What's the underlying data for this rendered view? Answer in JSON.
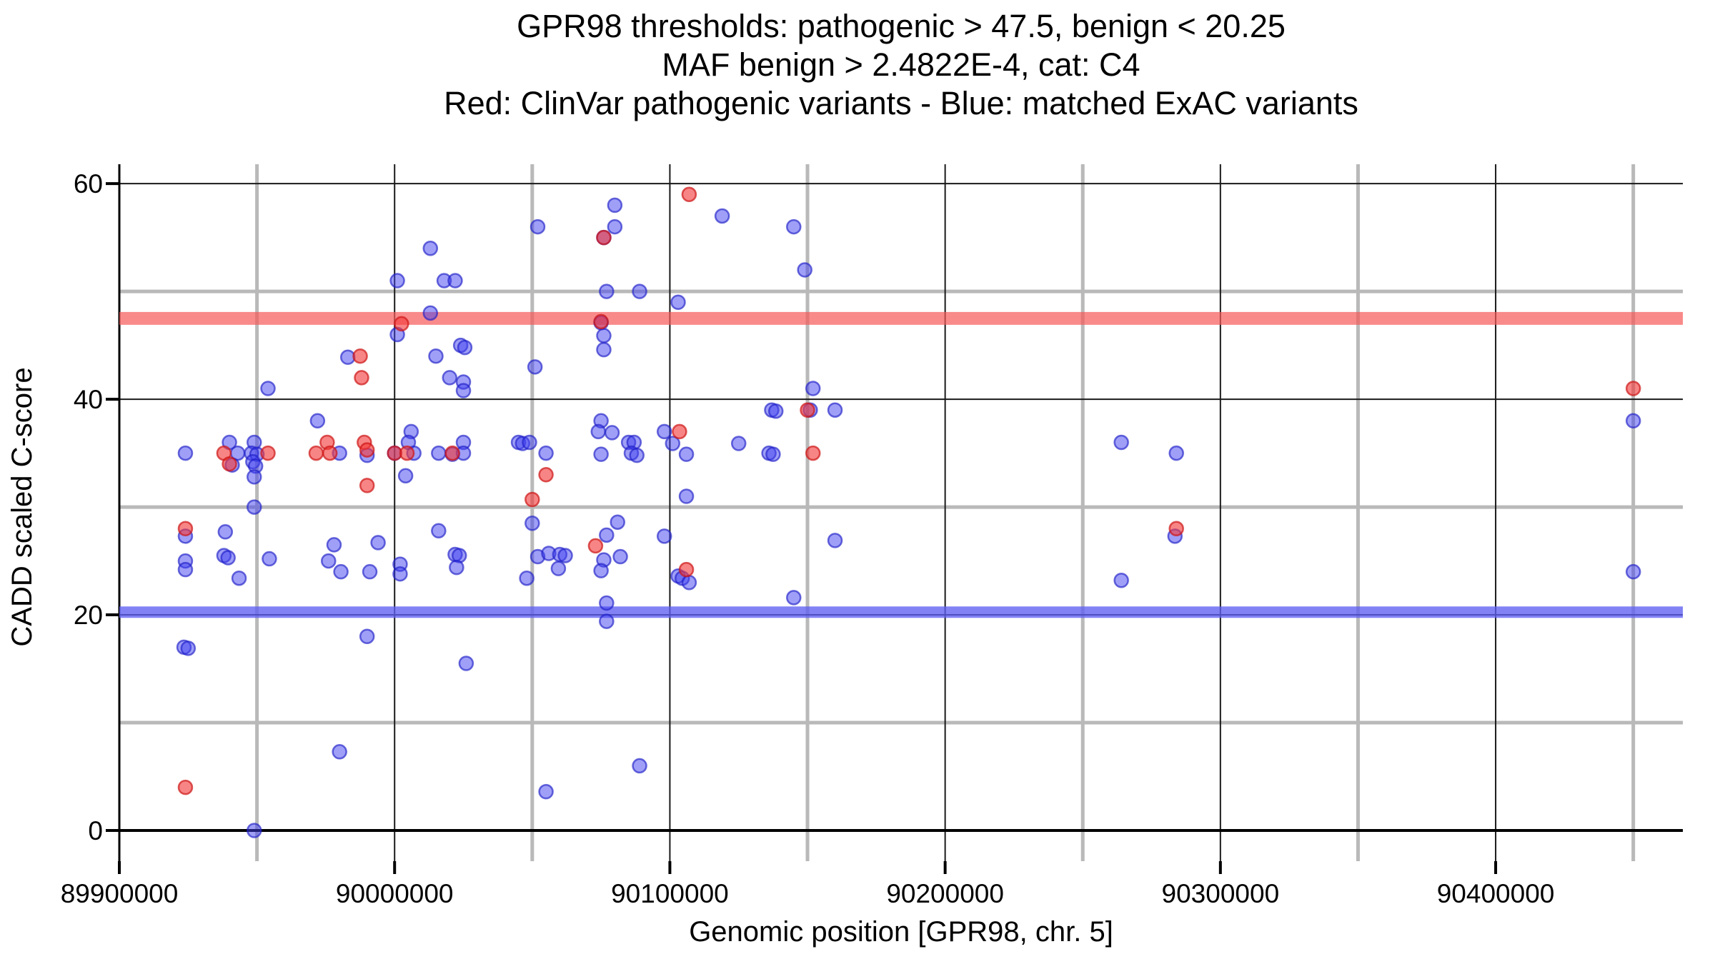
{
  "page": {
    "background": "#ffffff"
  },
  "chart_data": {
    "type": "scatter",
    "title_lines": [
      "GPR98 thresholds: pathogenic > 47.5, benign < 20.25",
      "MAF benign > 2.4822E-4, cat: C4",
      "Red: ClinVar pathogenic variants - Blue: matched ExAC variants"
    ],
    "xlabel": "Genomic position [GPR98, chr. 5]",
    "ylabel": "CADD scaled C-score",
    "xlim": [
      89900000,
      90468000
    ],
    "ylim": [
      0,
      61.8
    ],
    "x_ticks": [
      89900000,
      90000000,
      90100000,
      90200000,
      90300000,
      90400000
    ],
    "x_tick_labels": [
      "89900000",
      "90000000",
      "90100000",
      "90200000",
      "90300000",
      "90400000"
    ],
    "x_minor_ticks": [
      89950000,
      90050000,
      90150000,
      90250000,
      90350000,
      90450000
    ],
    "y_ticks": [
      0,
      20,
      40,
      60
    ],
    "y_tick_labels": [
      "0",
      "20",
      "40",
      "60"
    ],
    "y_minor_ticks": [
      10,
      30,
      50
    ],
    "grid": {
      "major_color": "#1a1a1a",
      "minor_color": "#b9b9b9",
      "axis_color": "#000000",
      "legend_position": "none",
      "grid_on": true
    },
    "thresholds": {
      "pathogenic_value": 47.5,
      "benign_value": 20.25,
      "pathogenic_band_color": "rgba(247,88,88,0.70)",
      "benign_band_color": "rgba(95,95,242,0.78)"
    },
    "series": [
      {
        "name": "matched ExAC variants",
        "fill": "rgba(64,64,240,0.50)",
        "stroke": "rgba(30,30,200,0.65)",
        "points": [
          [
            90080000,
            58
          ],
          [
            90119000,
            57
          ],
          [
            90052000,
            56
          ],
          [
            90080000,
            56
          ],
          [
            90145000,
            56
          ],
          [
            90076000,
            55
          ],
          [
            90013000,
            54
          ],
          [
            90149000,
            52
          ],
          [
            90001000,
            51
          ],
          [
            90018000,
            51
          ],
          [
            90022000,
            51
          ],
          [
            90077000,
            50
          ],
          [
            90089000,
            50
          ],
          [
            90103000,
            49
          ],
          [
            90013000,
            48
          ],
          [
            90075000,
            47.1
          ],
          [
            90001000,
            46
          ],
          [
            90076000,
            45.9
          ],
          [
            90024000,
            45
          ],
          [
            90025500,
            44.8
          ],
          [
            90076000,
            44.6
          ],
          [
            90015000,
            44
          ],
          [
            89983000,
            43.9
          ],
          [
            90051000,
            43
          ],
          [
            89954000,
            41
          ],
          [
            90152000,
            41
          ],
          [
            90020000,
            42
          ],
          [
            90025000,
            41.6
          ],
          [
            90025000,
            40.8
          ],
          [
            90137000,
            39
          ],
          [
            90138500,
            38.9
          ],
          [
            90151000,
            39
          ],
          [
            90160000,
            39
          ],
          [
            89972000,
            38
          ],
          [
            90075000,
            38
          ],
          [
            90074000,
            37
          ],
          [
            90079000,
            36.9
          ],
          [
            90006000,
            37
          ],
          [
            90098000,
            37
          ],
          [
            89940000,
            36
          ],
          [
            89949000,
            36
          ],
          [
            90005000,
            36
          ],
          [
            90025000,
            36
          ],
          [
            90045000,
            36
          ],
          [
            90046500,
            35.9
          ],
          [
            90049000,
            36
          ],
          [
            90085000,
            36
          ],
          [
            90087000,
            36
          ],
          [
            90101000,
            35.9
          ],
          [
            90125000,
            35.9
          ],
          [
            90264000,
            36
          ],
          [
            89924000,
            35
          ],
          [
            89943000,
            35
          ],
          [
            89948000,
            35
          ],
          [
            89950000,
            34.9
          ],
          [
            89980000,
            35
          ],
          [
            89990000,
            34.8
          ],
          [
            90000000,
            35
          ],
          [
            90007000,
            35
          ],
          [
            90016000,
            35
          ],
          [
            90021000,
            34.9
          ],
          [
            90025000,
            35
          ],
          [
            90055000,
            35
          ],
          [
            90075000,
            34.9
          ],
          [
            90086000,
            35
          ],
          [
            90088000,
            34.8
          ],
          [
            90106000,
            34.9
          ],
          [
            90136000,
            35
          ],
          [
            90137500,
            34.9
          ],
          [
            90284000,
            35
          ],
          [
            89941000,
            33.9
          ],
          [
            89948500,
            34.2
          ],
          [
            89949500,
            33.8
          ],
          [
            90004000,
            32.9
          ],
          [
            89949000,
            32.8
          ],
          [
            90106000,
            31
          ],
          [
            89949000,
            30
          ],
          [
            90081000,
            28.6
          ],
          [
            90050000,
            28.5
          ],
          [
            89938500,
            27.7
          ],
          [
            89924000,
            27.3
          ],
          [
            90016000,
            27.8
          ],
          [
            89994000,
            26.7
          ],
          [
            89978000,
            26.5
          ],
          [
            90098000,
            27.3
          ],
          [
            90160000,
            26.9
          ],
          [
            90283500,
            27.3
          ],
          [
            90077000,
            27.4
          ],
          [
            89976000,
            25
          ],
          [
            89924000,
            25
          ],
          [
            89938000,
            25.5
          ],
          [
            89939500,
            25.3
          ],
          [
            89954500,
            25.2
          ],
          [
            90002000,
            24.7
          ],
          [
            90002000,
            23.8
          ],
          [
            90022000,
            25.6
          ],
          [
            90023500,
            25.5
          ],
          [
            90022500,
            24.4
          ],
          [
            90052000,
            25.4
          ],
          [
            90056000,
            25.7
          ],
          [
            90060000,
            25.6
          ],
          [
            90062000,
            25.5
          ],
          [
            90059500,
            24.3
          ],
          [
            90048000,
            23.4
          ],
          [
            90076000,
            25.1
          ],
          [
            90082000,
            25.4
          ],
          [
            90075000,
            24.1
          ],
          [
            89924000,
            24.2
          ],
          [
            89943500,
            23.4
          ],
          [
            89980500,
            24
          ],
          [
            89991000,
            24
          ],
          [
            90103000,
            23.6
          ],
          [
            90104500,
            23.4
          ],
          [
            90107000,
            23
          ],
          [
            90264000,
            23.2
          ],
          [
            90145000,
            21.6
          ],
          [
            90077000,
            21.1
          ],
          [
            90077000,
            19.4
          ],
          [
            89990000,
            18
          ],
          [
            89923500,
            17
          ],
          [
            89925000,
            16.9
          ],
          [
            90026000,
            15.5
          ],
          [
            89980000,
            7.3
          ],
          [
            90089000,
            6
          ],
          [
            90055000,
            3.6
          ],
          [
            89949000,
            0
          ],
          [
            90450000,
            38
          ],
          [
            90450000,
            24
          ]
        ]
      },
      {
        "name": "ClinVar pathogenic variants",
        "fill": "rgba(242,58,58,0.62)",
        "stroke": "rgba(205,22,22,0.70)",
        "points": [
          [
            90107000,
            59
          ],
          [
            90076000,
            55
          ],
          [
            90002500,
            47
          ],
          [
            90075000,
            47.2
          ],
          [
            89987500,
            44
          ],
          [
            89988000,
            42
          ],
          [
            90450000,
            41
          ],
          [
            90150000,
            39
          ],
          [
            90103500,
            37
          ],
          [
            89975500,
            36
          ],
          [
            89989000,
            36
          ],
          [
            89938000,
            35
          ],
          [
            89954000,
            35
          ],
          [
            89971500,
            35
          ],
          [
            89976500,
            35
          ],
          [
            89990000,
            35.3
          ],
          [
            90000000,
            35
          ],
          [
            90004500,
            35
          ],
          [
            90021000,
            35
          ],
          [
            90152000,
            35
          ],
          [
            89940000,
            34
          ],
          [
            90055000,
            33
          ],
          [
            89990000,
            32
          ],
          [
            90050000,
            30.7
          ],
          [
            89924000,
            28
          ],
          [
            90284000,
            28
          ],
          [
            90073000,
            26.4
          ],
          [
            90106000,
            24.2
          ],
          [
            89924000,
            4
          ]
        ]
      }
    ]
  }
}
